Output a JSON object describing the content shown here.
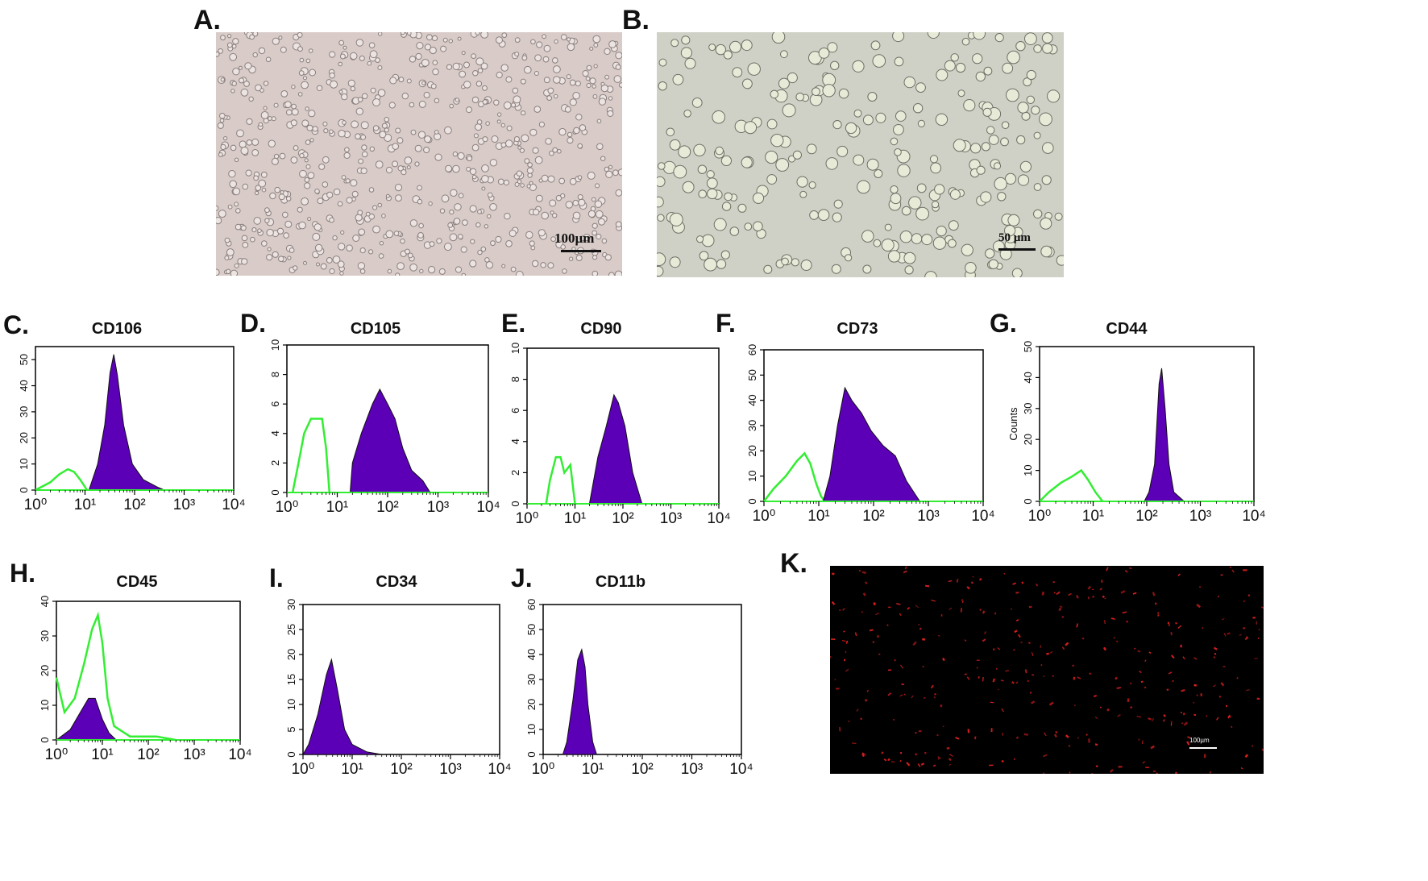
{
  "panels": {
    "A": {
      "letter": "A.",
      "scale": "100µm"
    },
    "B": {
      "letter": "B.",
      "scale": "50 µm"
    },
    "K": {
      "letter": "K.",
      "scale": "100µm"
    }
  },
  "colors": {
    "filled_histogram": "#5c00b8",
    "control_histogram": "#33ee33",
    "axis": "#000000",
    "fluorescence_bg": "#000000",
    "fluorescence_cells": "#e02020"
  },
  "chart_data": [
    {
      "id": "C",
      "letter": "C.",
      "type": "area",
      "title": "CD106",
      "xscale": "log",
      "xlim": [
        1,
        10000
      ],
      "xticks": [
        "10⁰",
        "10¹",
        "10²",
        "10³",
        "10⁴"
      ],
      "ylim": [
        0,
        55
      ],
      "yticks": [
        0,
        10,
        20,
        30,
        40,
        50
      ],
      "ylabel": "",
      "series": [
        {
          "role": "control",
          "points": [
            [
              1,
              0
            ],
            [
              2,
              3
            ],
            [
              3,
              6
            ],
            [
              4.5,
              8
            ],
            [
              6,
              7
            ],
            [
              8,
              4
            ],
            [
              11,
              0
            ]
          ]
        },
        {
          "role": "stained",
          "points": [
            [
              12,
              0
            ],
            [
              18,
              10
            ],
            [
              25,
              25
            ],
            [
              32,
              45
            ],
            [
              38,
              52
            ],
            [
              45,
              44
            ],
            [
              60,
              25
            ],
            [
              90,
              10
            ],
            [
              150,
              4
            ],
            [
              300,
              1
            ],
            [
              400,
              0
            ]
          ]
        }
      ]
    },
    {
      "id": "D",
      "letter": "D.",
      "type": "area",
      "title": "CD105",
      "xscale": "log",
      "xlim": [
        1,
        10000
      ],
      "xticks": [
        "10⁰",
        "10¹",
        "10²",
        "10³",
        "10⁴"
      ],
      "ylim": [
        0,
        10
      ],
      "yticks": [
        0,
        2,
        4,
        6,
        8,
        10
      ],
      "ylabel": "",
      "series": [
        {
          "role": "control",
          "points": [
            [
              1.3,
              0
            ],
            [
              1.7,
              2
            ],
            [
              2.2,
              4
            ],
            [
              3,
              5
            ],
            [
              4,
              5
            ],
            [
              5,
              5
            ],
            [
              6,
              3
            ],
            [
              7,
              0
            ]
          ]
        },
        {
          "role": "stained",
          "points": [
            [
              18,
              0
            ],
            [
              20,
              2
            ],
            [
              30,
              4
            ],
            [
              50,
              6
            ],
            [
              70,
              7
            ],
            [
              100,
              6
            ],
            [
              140,
              5
            ],
            [
              200,
              3
            ],
            [
              300,
              1.5
            ],
            [
              500,
              0.8
            ],
            [
              700,
              0
            ]
          ]
        }
      ]
    },
    {
      "id": "E",
      "letter": "E.",
      "type": "area",
      "title": "CD90",
      "xscale": "log",
      "xlim": [
        1,
        10000
      ],
      "xticks": [
        "10⁰",
        "10¹",
        "10²",
        "10³",
        "10⁴"
      ],
      "ylim": [
        0,
        10
      ],
      "yticks": [
        0,
        2,
        4,
        6,
        8,
        10
      ],
      "ylabel": "",
      "series": [
        {
          "role": "control",
          "points": [
            [
              2.5,
              0
            ],
            [
              3,
              1.5
            ],
            [
              4,
              3
            ],
            [
              5,
              3
            ],
            [
              6,
              2
            ],
            [
              8,
              2.5
            ],
            [
              10,
              0
            ]
          ]
        },
        {
          "role": "stained",
          "points": [
            [
              20,
              0
            ],
            [
              30,
              3
            ],
            [
              45,
              5
            ],
            [
              65,
              7
            ],
            [
              80,
              6.5
            ],
            [
              110,
              5
            ],
            [
              160,
              2
            ],
            [
              250,
              0
            ]
          ]
        }
      ]
    },
    {
      "id": "F",
      "letter": "F.",
      "type": "area",
      "title": "CD73",
      "xscale": "log",
      "xlim": [
        1,
        10000
      ],
      "xticks": [
        "10⁰",
        "10¹",
        "10²",
        "10³",
        "10⁴"
      ],
      "ylim": [
        0,
        60
      ],
      "yticks": [
        0,
        10,
        20,
        30,
        40,
        50,
        60
      ],
      "ylabel": "",
      "series": [
        {
          "role": "control",
          "points": [
            [
              1,
              0
            ],
            [
              1.5,
              5
            ],
            [
              2.5,
              10
            ],
            [
              4,
              16
            ],
            [
              5.5,
              19
            ],
            [
              7,
              15
            ],
            [
              9,
              7
            ],
            [
              11,
              2
            ],
            [
              13,
              0
            ]
          ]
        },
        {
          "role": "stained",
          "points": [
            [
              12,
              0
            ],
            [
              16,
              10
            ],
            [
              22,
              30
            ],
            [
              30,
              45
            ],
            [
              40,
              40
            ],
            [
              60,
              35
            ],
            [
              90,
              28
            ],
            [
              150,
              22
            ],
            [
              250,
              18
            ],
            [
              400,
              8
            ],
            [
              700,
              0
            ]
          ]
        }
      ]
    },
    {
      "id": "G",
      "letter": "G.",
      "type": "area",
      "title": "CD44",
      "xscale": "log",
      "xlim": [
        1,
        10000
      ],
      "xticks": [
        "10⁰",
        "10¹",
        "10²",
        "10³",
        "10⁴"
      ],
      "ylim": [
        0,
        50
      ],
      "yticks": [
        0,
        10,
        20,
        30,
        40,
        50
      ],
      "ylabel": "Counts",
      "series": [
        {
          "role": "control",
          "points": [
            [
              1,
              0
            ],
            [
              1.5,
              3
            ],
            [
              2.5,
              6
            ],
            [
              4,
              8
            ],
            [
              6,
              10
            ],
            [
              8,
              7
            ],
            [
              11,
              3
            ],
            [
              15,
              0
            ]
          ]
        },
        {
          "role": "stained",
          "points": [
            [
              90,
              0
            ],
            [
              110,
              3
            ],
            [
              140,
              12
            ],
            [
              170,
              38
            ],
            [
              190,
              43
            ],
            [
              220,
              30
            ],
            [
              260,
              12
            ],
            [
              320,
              3
            ],
            [
              500,
              0
            ]
          ]
        }
      ]
    },
    {
      "id": "H",
      "letter": "H.",
      "type": "area",
      "title": "CD45",
      "xscale": "log",
      "xlim": [
        1,
        10000
      ],
      "xticks": [
        "10⁰",
        "10¹",
        "10²",
        "10³",
        "10⁴"
      ],
      "ylim": [
        0,
        40
      ],
      "yticks": [
        0,
        10,
        20,
        30,
        40
      ],
      "ylabel": "",
      "series": [
        {
          "role": "control",
          "points": [
            [
              1,
              18
            ],
            [
              1.5,
              8
            ],
            [
              2.5,
              12
            ],
            [
              4,
              22
            ],
            [
              6,
              32
            ],
            [
              8,
              36
            ],
            [
              10,
              28
            ],
            [
              13,
              12
            ],
            [
              18,
              4
            ],
            [
              40,
              1
            ],
            [
              150,
              1
            ],
            [
              400,
              0
            ]
          ]
        },
        {
          "role": "stained",
          "points": [
            [
              1,
              0
            ],
            [
              2,
              3
            ],
            [
              3,
              7
            ],
            [
              5,
              12
            ],
            [
              7,
              12
            ],
            [
              10,
              6
            ],
            [
              14,
              2
            ],
            [
              20,
              0
            ]
          ]
        }
      ]
    },
    {
      "id": "I",
      "letter": "I.",
      "type": "area",
      "title": "CD34",
      "xscale": "log",
      "xlim": [
        1,
        10000
      ],
      "xticks": [
        "10⁰",
        "10¹",
        "10²",
        "10³",
        "10⁴"
      ],
      "ylim": [
        0,
        30
      ],
      "yticks": [
        0,
        5,
        10,
        15,
        20,
        25,
        30
      ],
      "ylabel": "",
      "series": [
        {
          "role": "stained",
          "points": [
            [
              1,
              0
            ],
            [
              1.3,
              2
            ],
            [
              2,
              8
            ],
            [
              3,
              16
            ],
            [
              3.8,
              19
            ],
            [
              5,
              13
            ],
            [
              7,
              5
            ],
            [
              10,
              2
            ],
            [
              20,
              0.5
            ],
            [
              40,
              0
            ]
          ]
        }
      ]
    },
    {
      "id": "J",
      "letter": "J.",
      "type": "area",
      "title": "CD11b",
      "xscale": "log",
      "xlim": [
        1,
        10000
      ],
      "xticks": [
        "10⁰",
        "10¹",
        "10²",
        "10³",
        "10⁴"
      ],
      "ylim": [
        0,
        60
      ],
      "yticks": [
        0,
        10,
        20,
        30,
        40,
        50,
        60
      ],
      "ylabel": "",
      "series": [
        {
          "role": "stained",
          "points": [
            [
              2.5,
              0
            ],
            [
              3,
              5
            ],
            [
              4,
              22
            ],
            [
              5,
              38
            ],
            [
              6,
              42
            ],
            [
              7,
              35
            ],
            [
              8,
              20
            ],
            [
              10,
              5
            ],
            [
              12,
              0
            ]
          ]
        }
      ]
    }
  ]
}
